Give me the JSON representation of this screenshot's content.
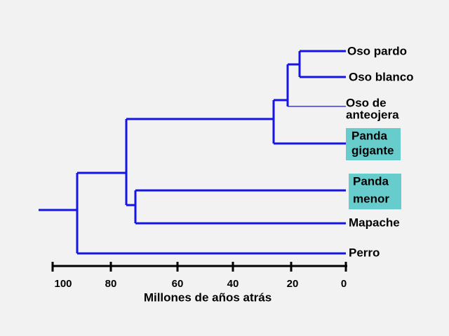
{
  "leaves": [
    {
      "lines": [
        "Oso pardo"
      ]
    },
    {
      "lines": [
        "Oso blanco"
      ]
    },
    {
      "lines": [
        "Oso de",
        "anteojera"
      ]
    },
    {
      "lines": [
        "Panda",
        "gigante"
      ]
    },
    {
      "lines": [
        "Panda",
        "menor"
      ]
    },
    {
      "lines": [
        "Mapache"
      ]
    },
    {
      "lines": [
        "Perro"
      ]
    }
  ],
  "axis": {
    "ticks": [
      "100",
      "80",
      "60",
      "40",
      "20",
      "0"
    ],
    "title": "Millones de años atrás"
  }
}
